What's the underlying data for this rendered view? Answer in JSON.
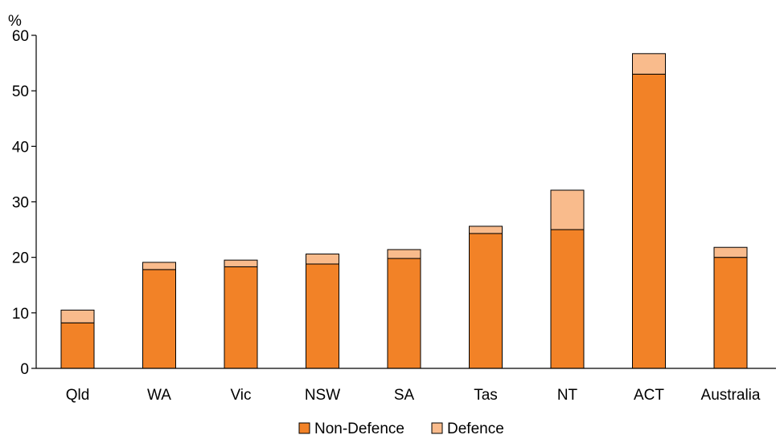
{
  "chart_data": {
    "type": "bar",
    "stacked": true,
    "y_unit": "%",
    "categories": [
      "Qld",
      "WA",
      "Vic",
      "NSW",
      "SA",
      "Tas",
      "NT",
      "ACT",
      "Australia"
    ],
    "series": [
      {
        "name": "Non-Defence",
        "color": "#F28227",
        "values": [
          8.2,
          17.8,
          18.3,
          18.8,
          19.8,
          24.3,
          25.0,
          53.0,
          20.0
        ]
      },
      {
        "name": "Defence",
        "color": "#F9BB8C",
        "values": [
          2.3,
          1.3,
          1.2,
          1.8,
          1.6,
          1.3,
          7.1,
          3.7,
          1.8
        ]
      }
    ],
    "ylim": [
      0,
      60
    ],
    "yticks": [
      0,
      10,
      20,
      30,
      40,
      50,
      60
    ],
    "legend_position": "bottom-center",
    "grid": false
  }
}
